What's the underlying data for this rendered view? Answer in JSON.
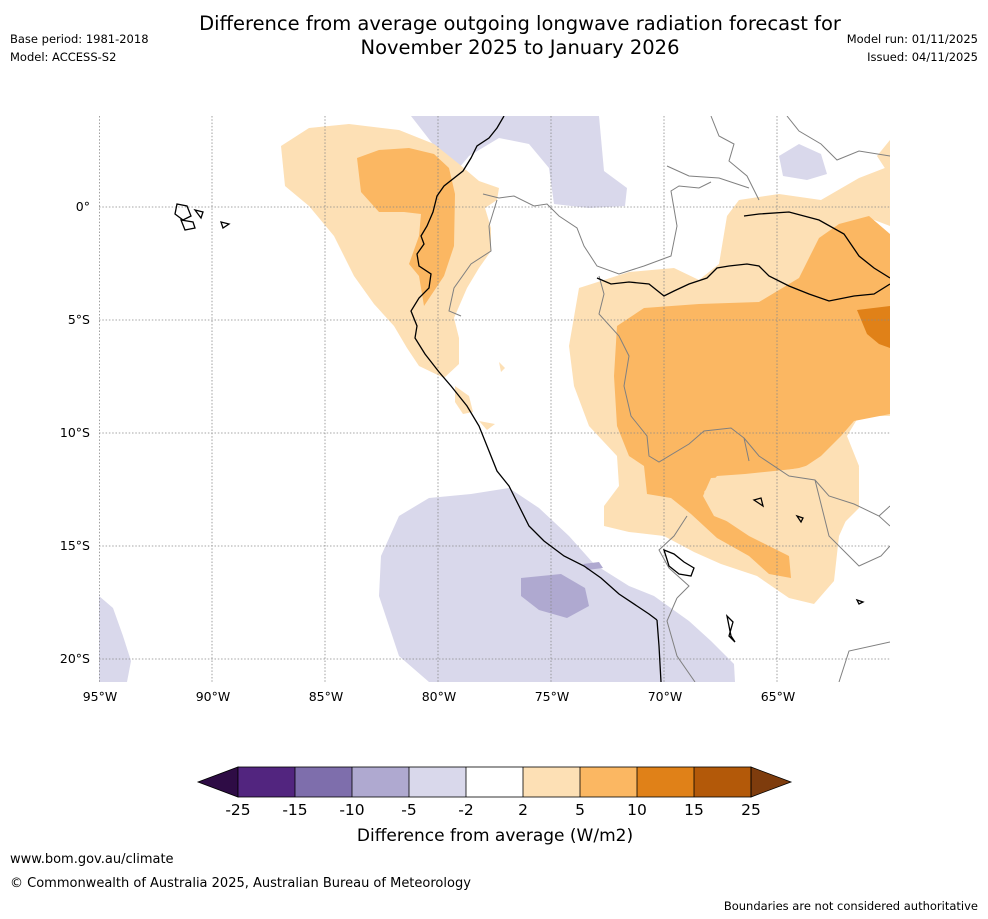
{
  "header": {
    "title_line1": "Difference from average outgoing longwave radiation forecast for",
    "title_line2": "November 2025 to January 2026",
    "base_period": "Base period: 1981-2018",
    "model": "Model: ACCESS-S2",
    "model_run": "Model run: 01/11/2025",
    "issued": "Issued: 04/11/2025"
  },
  "axes": {
    "lat_labels": [
      "0°",
      "5°S",
      "10°S",
      "15°S",
      "20°S"
    ],
    "lon_labels": [
      "95°W",
      "90°W",
      "85°W",
      "80°W",
      "75°W",
      "70°W",
      "65°W"
    ]
  },
  "colorbar": {
    "title": "Difference from average (W/m2)",
    "ticks": [
      "-25",
      "-15",
      "-10",
      "-5",
      "-2",
      "2",
      "5",
      "10",
      "15",
      "25"
    ],
    "colors": {
      "below_min": "#2e0c45",
      "n25_n15": "#52257f",
      "n15_n10": "#7e6eac",
      "n10_n5": "#afa9d0",
      "n5_n2": "#d9d8eb",
      "n2_2": "#ffffff",
      "p2_5": "#fde0b5",
      "p5_10": "#fbb762",
      "p10_15": "#e08118",
      "p15_25": "#b35909",
      "above_max": "#7e3c0d"
    }
  },
  "footer": {
    "website": "www.bom.gov.au/climate",
    "copyright": "© Commonwealth of Australia 2025, Australian Bureau of Meteorology",
    "disclaimer": "Boundaries are not considered authoritative"
  }
}
